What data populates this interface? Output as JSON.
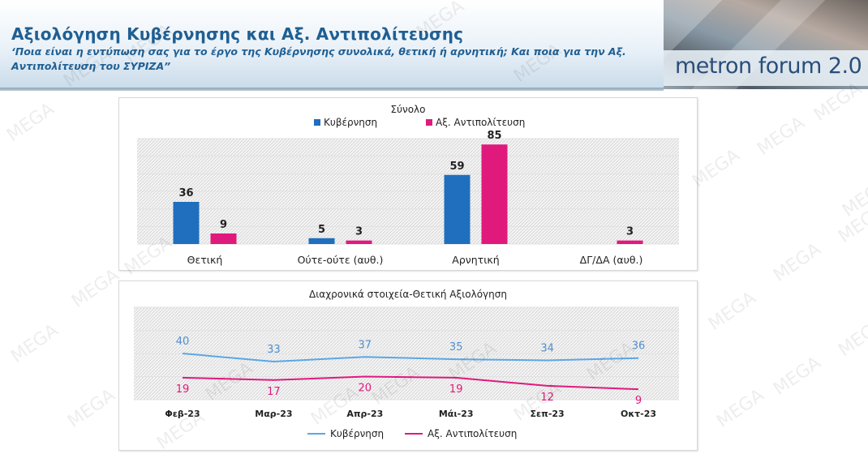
{
  "header": {
    "title": "Αξιολόγηση Κυβέρνησης και Αξ. Αντιπολίτευσης",
    "subtitle": "‘Ποια είναι η εντύπωση σας για το έργο της Κυβέρνησης συνολικά, θετική ή αρνητική; Και ποια για την Αξ. Αντιπολίτευση του ΣΥΡΙΖΑ”",
    "logo_text": "metron forum 2.0"
  },
  "watermark": "MEGA",
  "colors": {
    "government": "#1f6fbe",
    "opposition": "#e0197d",
    "gov_line": "#5aa7e6",
    "text": "#1f5f93"
  },
  "chart_data": [
    {
      "type": "bar",
      "title": "Σύνολο",
      "categories": [
        "Θετική",
        "Ούτε-ούτε (αυθ.)",
        "Αρνητική",
        "ΔΓ/ΔΑ (αυθ.)"
      ],
      "series": [
        {
          "name": "Κυβέρνηση",
          "values": [
            36,
            5,
            59,
            null
          ]
        },
        {
          "name": "Αξ. Αντιπολίτευση",
          "values": [
            9,
            3,
            85,
            3
          ]
        }
      ],
      "ylim": [
        0,
        90
      ],
      "legend": "top",
      "grid": true
    },
    {
      "type": "line",
      "title": "Διαχρονικά στοιχεία-Θετική Αξιολόγηση",
      "categories": [
        "Φεβ-23",
        "Μαρ-23",
        "Απρ-23",
        "Μάι-23",
        "Σεπ-23",
        "Οκτ-23"
      ],
      "series": [
        {
          "name": "Κυβέρνηση",
          "values": [
            40,
            33,
            37,
            35,
            34,
            36
          ]
        },
        {
          "name": "Αξ. Αντιπολίτευση",
          "values": [
            19,
            17,
            20,
            19,
            12,
            9
          ]
        }
      ],
      "ylim": [
        0,
        80
      ],
      "legend": "bottom",
      "grid": true
    }
  ]
}
